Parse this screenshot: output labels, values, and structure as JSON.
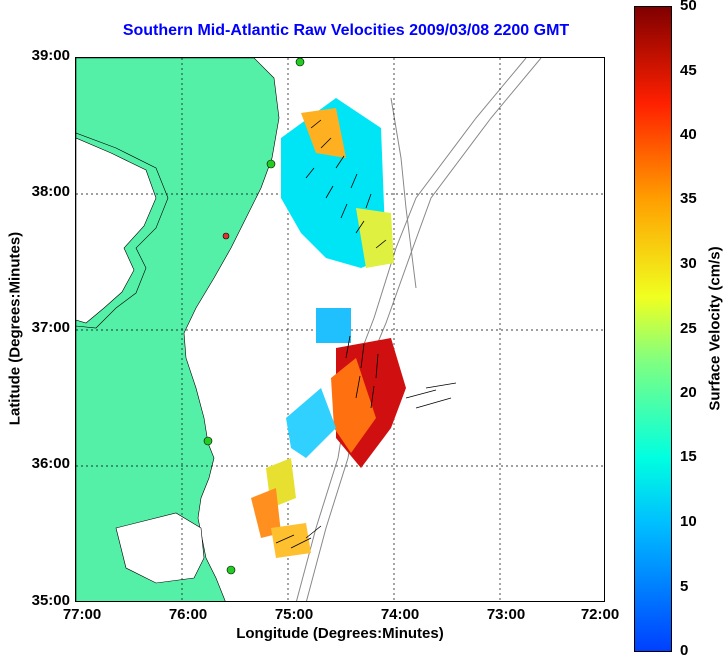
{
  "title": "Southern Mid-Atlantic Raw Velocities 2009/03/08 2200 GMT",
  "xlabel": "Longitude (Degrees:Minutes)",
  "ylabel": "Latitude (Degrees:Minutes)",
  "x_ticks": [
    "77:00",
    "76:00",
    "75:00",
    "74:00",
    "73:00",
    "72:00"
  ],
  "y_ticks": [
    "39:00",
    "38:00",
    "37:00",
    "36:00",
    "35:00"
  ],
  "colorbar": {
    "label": "Surface Velocity (cm/s)",
    "ticks": [
      "50",
      "45",
      "40",
      "35",
      "30",
      "25",
      "20",
      "15",
      "10",
      "5",
      "0"
    ]
  },
  "colors": {
    "land": "#55f0a8",
    "title": "#0000ff",
    "station": "#22cc22"
  }
}
